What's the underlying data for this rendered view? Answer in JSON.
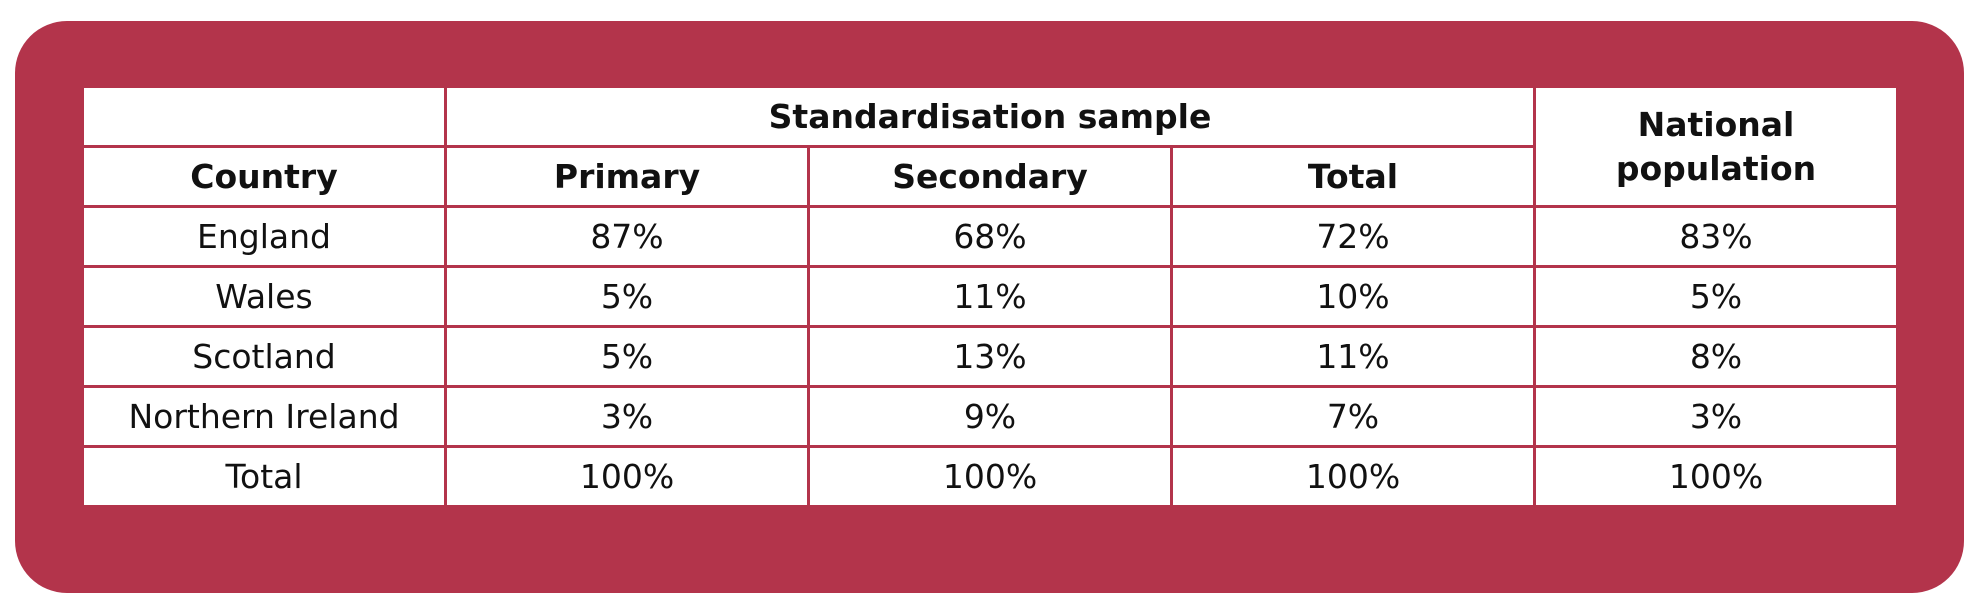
{
  "table": {
    "group_header": "Standardisation sample",
    "headers": [
      "Country",
      "Primary",
      "Secondary",
      "Total",
      "National population"
    ],
    "rows": [
      [
        "England",
        "87%",
        "68%",
        "72%",
        "83%"
      ],
      [
        "Wales",
        "5%",
        "11%",
        "10%",
        "5%"
      ],
      [
        "Scotland",
        "5%",
        "13%",
        "11%",
        "8%"
      ],
      [
        "Northern Ireland",
        "3%",
        "9%",
        "7%",
        "3%"
      ],
      [
        "Total",
        "100%",
        "100%",
        "100%",
        "100%"
      ]
    ]
  }
}
